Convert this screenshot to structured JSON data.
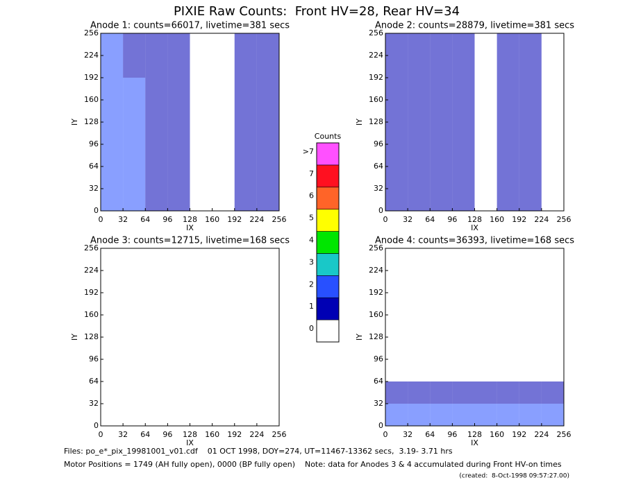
{
  "title": "PIXIE Raw Counts:  Front HV=28, Rear HV=34",
  "chart_data": [
    {
      "type": "heatmap",
      "title": "Anode 1: counts=66017, livetime=381 secs",
      "xlabel": "IX",
      "ylabel": "IY",
      "xlim": [
        0,
        256
      ],
      "ylim": [
        0,
        256
      ],
      "xticks": [
        0,
        32,
        64,
        96,
        128,
        160,
        192,
        224,
        256
      ],
      "yticks": [
        0,
        32,
        64,
        96,
        128,
        160,
        192,
        224,
        256
      ],
      "z": [
        [
          2,
          2,
          1,
          1,
          0,
          0,
          1,
          1
        ],
        [
          2,
          2,
          1,
          1,
          0,
          0,
          1,
          1
        ],
        [
          2,
          2,
          1,
          1,
          0,
          0,
          1,
          1
        ],
        [
          2,
          2,
          1,
          1,
          0,
          0,
          1,
          1
        ],
        [
          2,
          2,
          1,
          1,
          0,
          0,
          1,
          1
        ],
        [
          2,
          2,
          1,
          1,
          0,
          0,
          1,
          1
        ],
        [
          2,
          1,
          1,
          1,
          0,
          0,
          1,
          1
        ],
        [
          2,
          1,
          1,
          1,
          0,
          0,
          1,
          1
        ]
      ]
    },
    {
      "type": "heatmap",
      "title": "Anode 2: counts=28879, livetime=381 secs",
      "xlabel": "IX",
      "ylabel": "IY",
      "xlim": [
        0,
        256
      ],
      "ylim": [
        0,
        256
      ],
      "xticks": [
        0,
        32,
        64,
        96,
        128,
        160,
        192,
        224,
        256
      ],
      "yticks": [
        0,
        32,
        64,
        96,
        128,
        160,
        192,
        224,
        256
      ],
      "z": [
        [
          1,
          1,
          1,
          1,
          0,
          1,
          1,
          0
        ],
        [
          1,
          1,
          1,
          1,
          0,
          1,
          1,
          0
        ],
        [
          1,
          1,
          1,
          1,
          0,
          1,
          1,
          0
        ],
        [
          1,
          1,
          1,
          1,
          0,
          1,
          1,
          0
        ],
        [
          1,
          1,
          1,
          1,
          0,
          1,
          1,
          0
        ],
        [
          1,
          1,
          1,
          1,
          0,
          1,
          1,
          0
        ],
        [
          1,
          1,
          1,
          1,
          0,
          1,
          1,
          0
        ],
        [
          1,
          1,
          1,
          1,
          0,
          1,
          1,
          0
        ]
      ]
    },
    {
      "type": "heatmap",
      "title": "Anode 3: counts=12715, livetime=168 secs",
      "xlabel": "IX",
      "ylabel": "IY",
      "xlim": [
        0,
        256
      ],
      "ylim": [
        0,
        256
      ],
      "xticks": [
        0,
        32,
        64,
        96,
        128,
        160,
        192,
        224,
        256
      ],
      "yticks": [
        0,
        32,
        64,
        96,
        128,
        160,
        192,
        224,
        256
      ],
      "z": [
        [
          0,
          0,
          0,
          0,
          0,
          0,
          0,
          0
        ],
        [
          0,
          0,
          0,
          0,
          0,
          0,
          0,
          0
        ],
        [
          0,
          0,
          0,
          0,
          0,
          0,
          0,
          0
        ],
        [
          0,
          0,
          0,
          0,
          0,
          0,
          0,
          0
        ],
        [
          0,
          0,
          0,
          0,
          0,
          0,
          0,
          0
        ],
        [
          0,
          0,
          0,
          0,
          0,
          0,
          0,
          0
        ],
        [
          0,
          0,
          0,
          0,
          0,
          0,
          0,
          0
        ],
        [
          0,
          0,
          0,
          0,
          0,
          0,
          0,
          0
        ]
      ]
    },
    {
      "type": "heatmap",
      "title": "Anode 4: counts=36393, livetime=168 secs",
      "xlabel": "IX",
      "ylabel": "IY",
      "xlim": [
        0,
        256
      ],
      "ylim": [
        0,
        256
      ],
      "xticks": [
        0,
        32,
        64,
        96,
        128,
        160,
        192,
        224,
        256
      ],
      "yticks": [
        0,
        32,
        64,
        96,
        128,
        160,
        192,
        224,
        256
      ],
      "z": [
        [
          2,
          2,
          2,
          2,
          2,
          2,
          2,
          2
        ],
        [
          1,
          1,
          1,
          1,
          1,
          1,
          1,
          1
        ],
        [
          0,
          0,
          0,
          0,
          0,
          0,
          0,
          0
        ],
        [
          0,
          0,
          0,
          0,
          0,
          0,
          0,
          0
        ],
        [
          0,
          0,
          0,
          0,
          0,
          0,
          0,
          0
        ],
        [
          0,
          0,
          0,
          0,
          0,
          0,
          0,
          0
        ],
        [
          0,
          0,
          0,
          0,
          0,
          0,
          0,
          0
        ],
        [
          0,
          0,
          0,
          0,
          0,
          0,
          0,
          0
        ]
      ]
    }
  ],
  "colorbar": {
    "title": "Counts",
    "ticks": [
      0,
      1,
      2,
      3,
      4,
      5,
      6,
      7,
      {
        "value": 8,
        "label": ">7"
      }
    ],
    "colors": [
      "#ffffff",
      "#0000b4",
      "#2850ff",
      "#19c8c8",
      "#00e600",
      "#ffff00",
      "#ff6428",
      "#ff1020",
      "#ff50ff"
    ]
  },
  "footer": [
    "Files: po_e*_pix_19981001_v01.cdf    01 OCT 1998, DOY=274, UT=11467-13362 secs,  3.19- 3.71 hrs",
    "Motor Positions = 1749 (AH fully open), 0000 (BP fully open)    Note: data for Anodes 3 & 4 accumulated during Front HV-on times",
    "(created:  8-Oct-1998 09:57:27.00)"
  ]
}
